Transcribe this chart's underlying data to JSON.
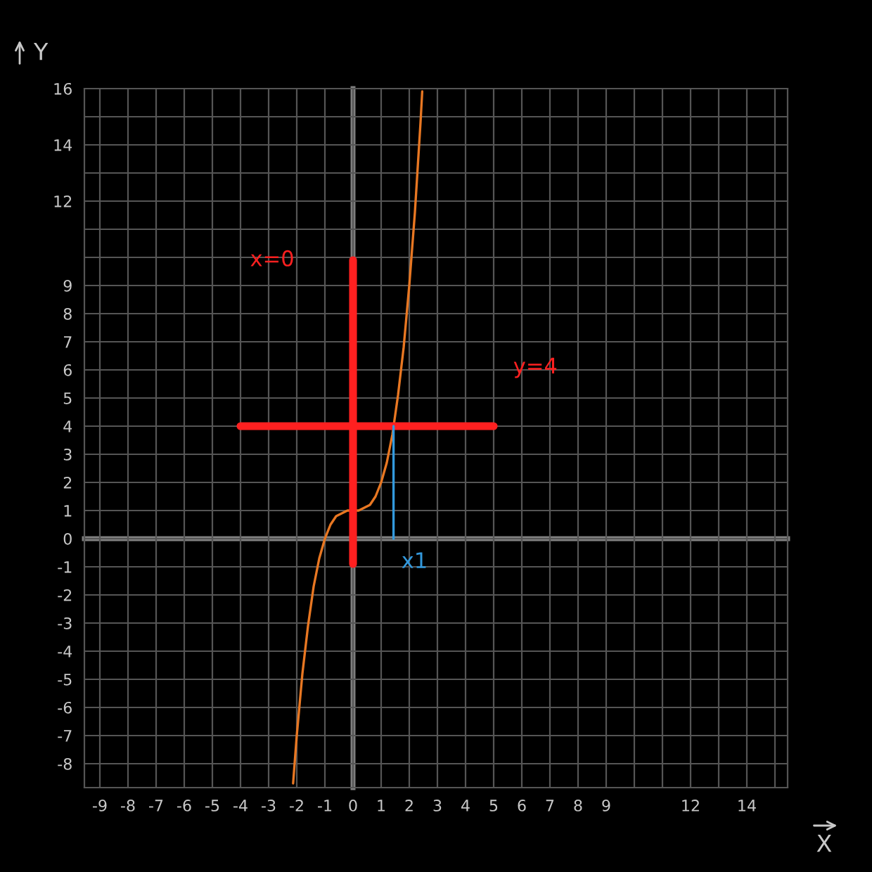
{
  "chart_data": {
    "type": "line",
    "xlabel": "X",
    "ylabel": "Y",
    "xlim": [
      -9.55,
      15.45
    ],
    "ylim": [
      -8.85,
      16
    ],
    "xticks": [
      -9,
      -8,
      -7,
      -6,
      -5,
      -4,
      -3,
      -2,
      -1,
      0,
      1,
      2,
      3,
      4,
      5,
      6,
      7,
      8,
      9,
      {
        "value": 10,
        "label": null
      },
      {
        "value": 11,
        "label": null
      },
      12,
      {
        "value": 13,
        "label": null
      },
      14,
      {
        "value": 15,
        "label": null
      }
    ],
    "yticks": [
      -8,
      -7,
      -6,
      -5,
      -4,
      -3,
      -2,
      -1,
      0,
      1,
      2,
      3,
      4,
      5,
      6,
      7,
      8,
      9,
      {
        "value": 10,
        "label": null
      },
      {
        "value": 11,
        "label": null
      },
      12,
      {
        "value": 13,
        "label": null
      },
      14,
      {
        "value": 15,
        "label": null
      },
      16
    ],
    "grid": true,
    "marker": "none",
    "series": [
      {
        "color": "#e87722",
        "x": [
          -2.13,
          -2.1,
          -2.0,
          -1.8,
          -1.6,
          -1.4,
          -1.2,
          -1.0,
          -0.8,
          -0.6,
          -0.4,
          -0.2,
          0.0,
          0.2,
          0.4,
          0.6,
          0.8,
          1.0,
          1.2,
          1.4,
          1.6,
          1.8,
          2.0,
          2.2,
          2.4,
          2.46
        ],
        "values": [
          -8.7,
          -8.3,
          -7.0,
          -4.8,
          -3.1,
          -1.7,
          -0.7,
          0.0,
          0.5,
          0.8,
          0.9,
          1.0,
          1.0,
          1.0,
          1.1,
          1.2,
          1.5,
          2.0,
          2.7,
          3.7,
          5.1,
          6.8,
          9.0,
          11.6,
          14.8,
          15.9
        ]
      },
      {
        "name": "x=0",
        "color": "#ff2020",
        "x": [
          0,
          0
        ],
        "values": [
          -0.9,
          9.9
        ]
      },
      {
        "name": "y=4",
        "color": "#ff2020",
        "x": [
          -4,
          5
        ],
        "values": [
          4,
          4
        ]
      },
      {
        "name": "x1",
        "color": "#3399dd",
        "x": [
          1.44,
          1.44
        ],
        "values": [
          4,
          0
        ]
      }
    ]
  }
}
